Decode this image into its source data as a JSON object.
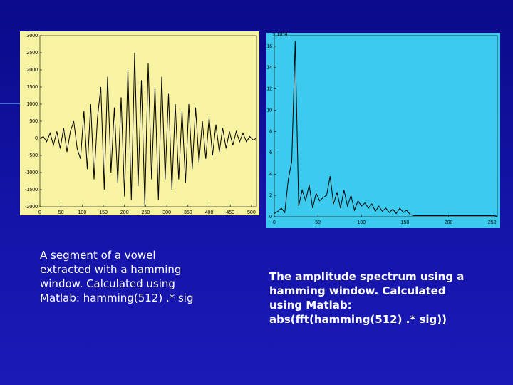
{
  "chart_data": [
    {
      "type": "line",
      "color": "#000000",
      "background": "#f7f3a3",
      "x": [
        0,
        8,
        16,
        24,
        32,
        40,
        48,
        56,
        64,
        72,
        80,
        88,
        96,
        104,
        112,
        120,
        128,
        136,
        144,
        152,
        160,
        168,
        176,
        184,
        192,
        200,
        208,
        216,
        224,
        232,
        240,
        248,
        256,
        264,
        272,
        280,
        288,
        296,
        304,
        312,
        320,
        328,
        336,
        344,
        352,
        360,
        368,
        376,
        384,
        392,
        400,
        408,
        416,
        424,
        432,
        440,
        448,
        456,
        464,
        472,
        480,
        488,
        496,
        504,
        512
      ],
      "values": [
        0,
        50,
        -100,
        150,
        -200,
        200,
        -300,
        300,
        -400,
        200,
        500,
        -300,
        -600,
        800,
        -900,
        1000,
        -1200,
        600,
        1500,
        -1500,
        1800,
        -1000,
        900,
        -1300,
        1200,
        -1700,
        2000,
        -1800,
        2500,
        -1400,
        1700,
        -2000,
        2200,
        -1200,
        1500,
        -1800,
        1800,
        -1200,
        1300,
        -1500,
        1000,
        -1200,
        800,
        -1300,
        1000,
        -900,
        900,
        -700,
        500,
        -600,
        600,
        -500,
        400,
        -400,
        300,
        -300,
        200,
        -200,
        200,
        -100,
        150,
        -100,
        50,
        -50,
        0
      ],
      "xlim": [
        0,
        512
      ],
      "xticks": [
        0,
        50,
        100,
        150,
        200,
        250,
        300,
        350,
        400,
        450,
        500
      ],
      "ylim": [
        -2000,
        3000
      ],
      "yticks": [
        -2000,
        -1500,
        -1000,
        -500,
        0,
        500,
        1000,
        1500,
        2000,
        2500,
        3000
      ],
      "caption": [
        "A segment of a vowel",
        "extracted with a hamming",
        "window. Calculated using",
        "Matlab: hamming(512) .* sig"
      ]
    },
    {
      "type": "line",
      "color": "#000000",
      "background": "#3ccbee",
      "y_multiplier": "x 10^4",
      "x": [
        0,
        4,
        8,
        12,
        16,
        20,
        24,
        28,
        32,
        36,
        40,
        44,
        48,
        52,
        56,
        60,
        64,
        68,
        72,
        76,
        80,
        84,
        88,
        92,
        96,
        100,
        104,
        108,
        112,
        116,
        120,
        124,
        128,
        132,
        136,
        140,
        144,
        148,
        152,
        156,
        160,
        164,
        168,
        172,
        176,
        180,
        184,
        188,
        192,
        196,
        200,
        204,
        208,
        212,
        216,
        220,
        224,
        228,
        232,
        236,
        240,
        244,
        248,
        252,
        256
      ],
      "values": [
        0.3,
        0.5,
        0.8,
        0.4,
        3.5,
        5.2,
        16.5,
        1.0,
        2.5,
        1.5,
        3.0,
        0.8,
        2.2,
        1.5,
        1.8,
        2.0,
        3.8,
        1.2,
        2.3,
        0.8,
        2.5,
        1.0,
        2.0,
        0.6,
        1.5,
        1.0,
        1.3,
        0.8,
        1.2,
        0.5,
        1.0,
        0.5,
        0.8,
        0.4,
        0.7,
        0.3,
        0.8,
        0.4,
        0.6,
        0.2,
        0.1,
        0.1,
        0.1,
        0.1,
        0.1,
        0.1,
        0.1,
        0.1,
        0.1,
        0.1,
        0.1,
        0.1,
        0.1,
        0.1,
        0.1,
        0.1,
        0.1,
        0.1,
        0.1,
        0.1,
        0.1,
        0.1,
        0.1,
        0.1,
        0.05
      ],
      "xlim": [
        0,
        256
      ],
      "xticks": [
        0,
        50,
        100,
        150,
        200,
        250
      ],
      "ylim": [
        0,
        17
      ],
      "yticks": [
        0,
        2,
        4,
        6,
        8,
        10,
        12,
        14,
        16
      ],
      "caption": [
        "The amplitude spectrum using a",
        "hamming window. Calculated",
        "using Matlab:",
        "abs(fft(hamming(512) .* sig))"
      ]
    }
  ]
}
